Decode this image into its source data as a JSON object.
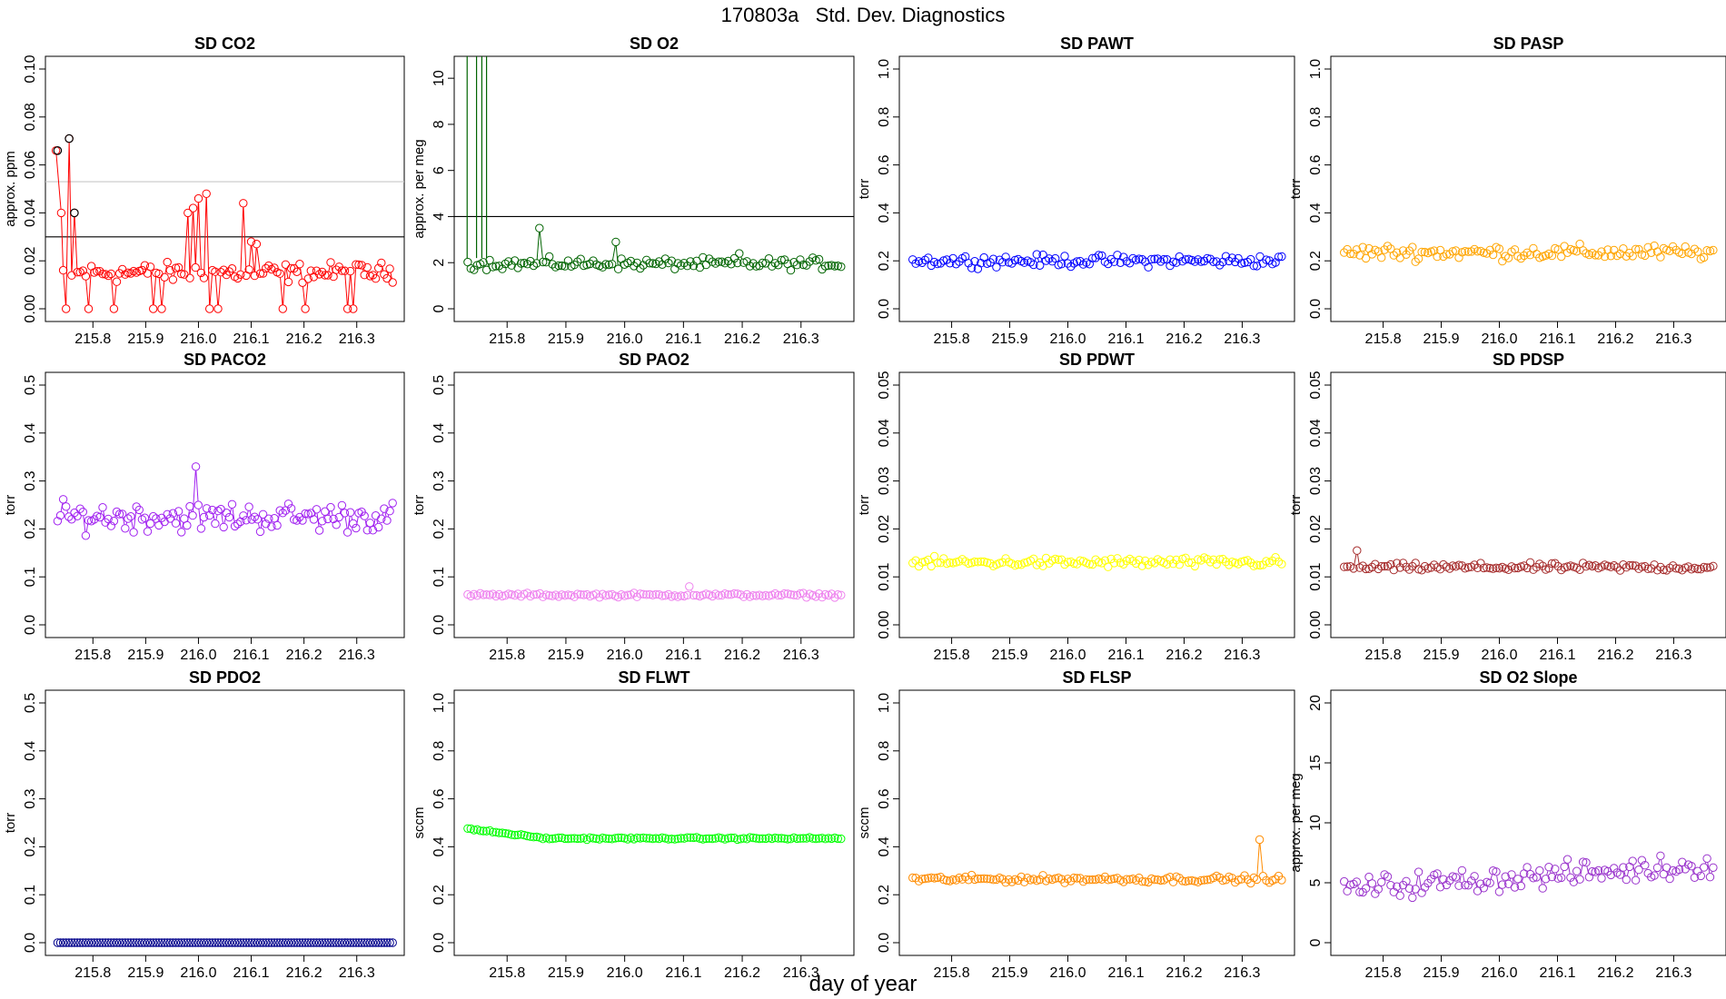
{
  "figure": {
    "title": "170803a   Std. Dev. Diagnostics",
    "xlabel": "day of year"
  },
  "chart_data": [
    {
      "type": "line",
      "title": "SD CO2",
      "ylabel": "approx. ppm",
      "ylim": [
        0,
        0.1
      ],
      "yticks": [
        "0.00",
        "0.02",
        "0.04",
        "0.06",
        "0.08",
        "0.10"
      ],
      "xlim": [
        215.71,
        216.39
      ],
      "xticks": [
        "215.8",
        "215.9",
        "216.0",
        "216.1",
        "216.2",
        "216.3"
      ],
      "color": "#ff0000",
      "baseline": 0.015,
      "noise": 0.006,
      "zeros": true,
      "hlines": [
        {
          "y": 0.03,
          "color": "#000000"
        },
        {
          "y": 0.053,
          "color": "#c8c8c8"
        }
      ],
      "series": [
        {
          "name": "spikes",
          "x": [
            215.73,
            215.74,
            215.755,
            215.765,
            215.98,
            215.99,
            216.0,
            216.015,
            216.085,
            216.1,
            216.11
          ],
          "y": [
            0.066,
            0.04,
            0.071,
            0.04,
            0.04,
            0.042,
            0.046,
            0.048,
            0.044,
            0.028,
            0.027
          ]
        }
      ],
      "highlights": {
        "x": [
          215.733,
          215.755,
          215.765
        ],
        "y": [
          0.066,
          0.071,
          0.04
        ],
        "color": "#000000"
      }
    },
    {
      "type": "line",
      "title": "SD O2",
      "ylabel": "approx. per meg",
      "ylim": [
        0,
        10.4
      ],
      "yticks": [
        "0",
        "2",
        "4",
        "6",
        "8",
        "10"
      ],
      "xlim": [
        215.71,
        216.39
      ],
      "xticks": [
        "215.8",
        "215.9",
        "216.0",
        "216.1",
        "216.2",
        "216.3"
      ],
      "color": "#006400",
      "baseline": 1.95,
      "noise": 0.35,
      "hlines": [
        {
          "y": 4,
          "color": "#000000"
        }
      ],
      "vlines": [
        215.732,
        215.748,
        215.757,
        215.765
      ],
      "series": [
        {
          "name": "spikes",
          "x": [
            215.855,
            215.985,
            216.195
          ],
          "y": [
            3.5,
            2.9,
            2.4
          ]
        }
      ]
    },
    {
      "type": "line",
      "title": "SD PAWT",
      "ylabel": "torr",
      "ylim": [
        0,
        1.0
      ],
      "yticks": [
        "0.0",
        "0.2",
        "0.4",
        "0.6",
        "0.8",
        "1.0"
      ],
      "xlim": [
        215.71,
        216.39
      ],
      "xticks": [
        "215.8",
        "215.9",
        "216.0",
        "216.1",
        "216.2",
        "216.3"
      ],
      "color": "#0000ff",
      "baseline": 0.2,
      "noise": 0.035
    },
    {
      "type": "line",
      "title": "SD PASP",
      "ylabel": "torr",
      "ylim": [
        0,
        1.0
      ],
      "yticks": [
        "0.0",
        "0.2",
        "0.4",
        "0.6",
        "0.8",
        "1.0"
      ],
      "xlim": [
        215.71,
        216.39
      ],
      "xticks": [
        "215.8",
        "215.9",
        "216.0",
        "216.1",
        "216.2",
        "216.3"
      ],
      "color": "#ffa500",
      "baseline": 0.235,
      "noise": 0.045
    },
    {
      "type": "line",
      "title": "SD PACO2",
      "ylabel": "torr",
      "ylim": [
        0,
        0.5
      ],
      "yticks": [
        "0.0",
        "0.1",
        "0.2",
        "0.3",
        "0.4",
        "0.5"
      ],
      "xlim": [
        215.71,
        216.39
      ],
      "xticks": [
        "215.8",
        "215.9",
        "216.0",
        "216.1",
        "216.2",
        "216.3"
      ],
      "color": "#a020f0",
      "baseline": 0.225,
      "noise": 0.045,
      "series": [
        {
          "name": "spikes",
          "x": [
            215.995
          ],
          "y": [
            0.33
          ]
        }
      ]
    },
    {
      "type": "line",
      "title": "SD PAO2",
      "ylabel": "torr",
      "ylim": [
        0,
        0.5
      ],
      "yticks": [
        "0.0",
        "0.1",
        "0.2",
        "0.3",
        "0.4",
        "0.5"
      ],
      "xlim": [
        215.71,
        216.39
      ],
      "xticks": [
        "215.8",
        "215.9",
        "216.0",
        "216.1",
        "216.2",
        "216.3"
      ],
      "color": "#ee82ee",
      "baseline": 0.062,
      "noise": 0.006,
      "series": [
        {
          "name": "spikes",
          "x": [
            216.11
          ],
          "y": [
            0.08
          ]
        }
      ]
    },
    {
      "type": "line",
      "title": "SD PDWT",
      "ylabel": "torr",
      "ylim": [
        0,
        0.05
      ],
      "yticks": [
        "0.00",
        "0.01",
        "0.02",
        "0.03",
        "0.04",
        "0.05"
      ],
      "xlim": [
        215.71,
        216.39
      ],
      "xticks": [
        "215.8",
        "215.9",
        "216.0",
        "216.1",
        "216.2",
        "216.3"
      ],
      "color": "#ffff00",
      "baseline": 0.013,
      "noise": 0.0015
    },
    {
      "type": "line",
      "title": "SD PDSP",
      "ylabel": "torr",
      "ylim": [
        0,
        0.05
      ],
      "yticks": [
        "0.00",
        "0.01",
        "0.02",
        "0.03",
        "0.04",
        "0.05"
      ],
      "xlim": [
        215.71,
        216.39
      ],
      "xticks": [
        "215.8",
        "215.9",
        "216.0",
        "216.1",
        "216.2",
        "216.3"
      ],
      "color": "#a52a2a",
      "baseline": 0.012,
      "noise": 0.0012,
      "series": [
        {
          "name": "spikes",
          "x": [
            215.755
          ],
          "y": [
            0.0155
          ]
        }
      ]
    },
    {
      "type": "line",
      "title": "SD PDO2",
      "ylabel": "torr",
      "ylim": [
        0,
        0.5
      ],
      "yticks": [
        "0.0",
        "0.1",
        "0.2",
        "0.3",
        "0.4",
        "0.5"
      ],
      "xlim": [
        215.71,
        216.39
      ],
      "xticks": [
        "215.8",
        "215.9",
        "216.0",
        "216.1",
        "216.2",
        "216.3"
      ],
      "color": "#00008b",
      "baseline": 0.0,
      "noise": 0.0
    },
    {
      "type": "line",
      "title": "SD FLWT",
      "ylabel": "sccm",
      "ylim": [
        0,
        1.0
      ],
      "yticks": [
        "0.0",
        "0.2",
        "0.4",
        "0.6",
        "0.8",
        "1.0"
      ],
      "xlim": [
        215.71,
        216.39
      ],
      "xticks": [
        "215.8",
        "215.9",
        "216.0",
        "216.1",
        "216.2",
        "216.3"
      ],
      "color": "#00ff00",
      "baseline": 0.435,
      "noise": 0.006,
      "trend_start": 0.475
    },
    {
      "type": "line",
      "title": "SD FLSP",
      "ylabel": "sccm",
      "ylim": [
        0,
        1.0
      ],
      "yticks": [
        "0.0",
        "0.2",
        "0.4",
        "0.6",
        "0.8",
        "1.0"
      ],
      "xlim": [
        215.71,
        216.39
      ],
      "xticks": [
        "215.8",
        "215.9",
        "216.0",
        "216.1",
        "216.2",
        "216.3"
      ],
      "color": "#ff8c00",
      "baseline": 0.265,
      "noise": 0.02,
      "series": [
        {
          "name": "spikes",
          "x": [
            216.33
          ],
          "y": [
            0.43
          ]
        }
      ]
    },
    {
      "type": "line",
      "title": "SD O2 Slope",
      "ylabel": "approx. per meg",
      "ylim": [
        0,
        20
      ],
      "yticks": [
        "0",
        "5",
        "10",
        "15",
        "20"
      ],
      "xlim": [
        215.71,
        216.39
      ],
      "xticks": [
        "215.8",
        "215.9",
        "216.0",
        "216.1",
        "216.2",
        "216.3"
      ],
      "color": "#9932cc",
      "baseline": 5.5,
      "noise": 1.5,
      "trend_end": 6.5
    }
  ]
}
